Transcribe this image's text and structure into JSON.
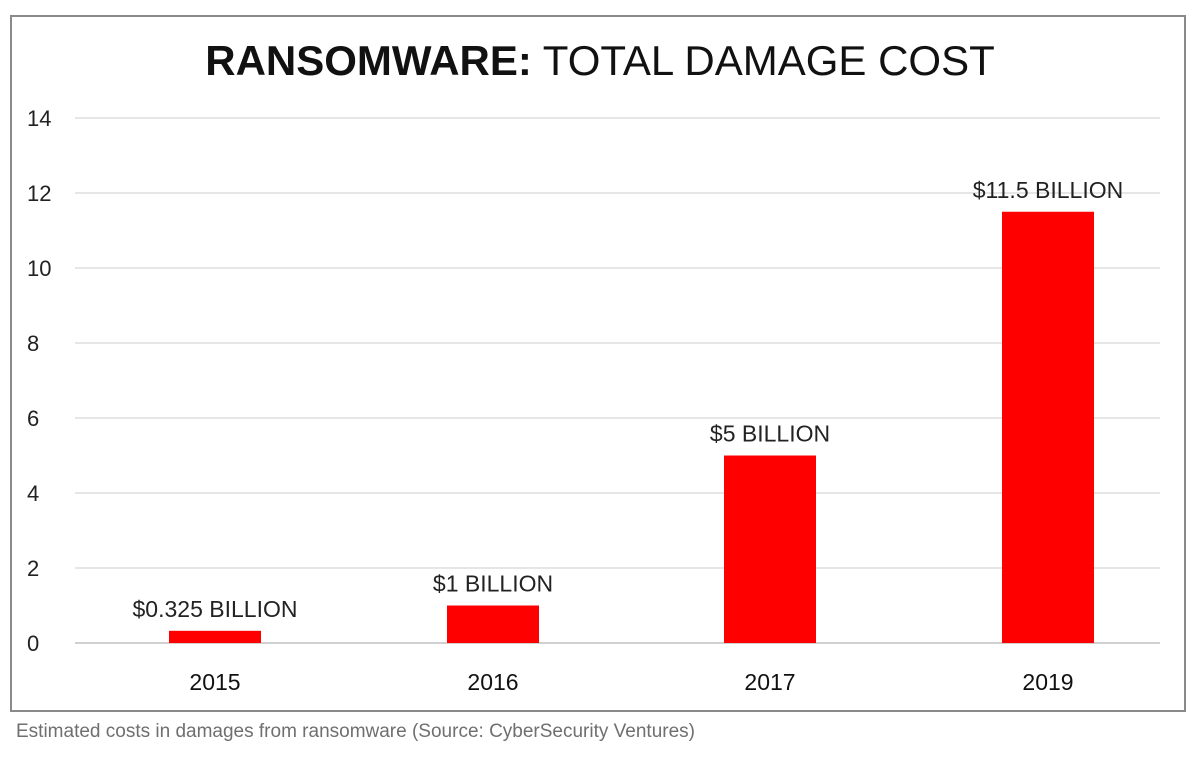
{
  "title": {
    "bold_part": "RANSOMWARE:",
    "light_part": " TOTAL DAMAGE COST"
  },
  "caption": "Estimated costs in damages from ransomware (Source: CyberSecurity Ventures)",
  "chart_data": {
    "type": "bar",
    "categories": [
      "2015",
      "2016",
      "2017",
      "2019"
    ],
    "values": [
      0.325,
      1,
      5,
      11.5
    ],
    "data_labels": [
      "$0.325 BILLION",
      "$1 BILLION",
      "$5 BILLION",
      "$11.5 BILLION"
    ],
    "yticks": [
      0,
      2,
      4,
      6,
      8,
      10,
      12,
      14
    ],
    "ylim": [
      0,
      14
    ],
    "grid": true,
    "legend": "none",
    "bar_color": "#ff0000"
  }
}
